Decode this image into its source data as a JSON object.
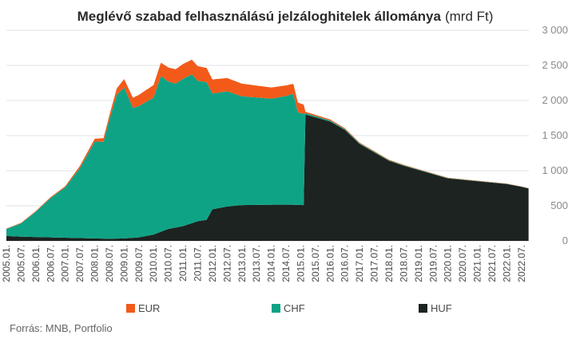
{
  "chart_data": {
    "type": "area",
    "stacked": true,
    "title_bold": "Meglévő szabad felhasználású jelzáloghitelek állománya",
    "title_unit": "(mrd Ft)",
    "source": "Forrás: MNB, Portfolio",
    "ylim": [
      0,
      3000
    ],
    "y_ticks": [
      0,
      500,
      1000,
      1500,
      2000,
      2500,
      3000
    ],
    "y_tick_labels": [
      "0",
      "500",
      "1 000",
      "1 500",
      "2 000",
      "2 500",
      "3 000"
    ],
    "x_tick_labels": [
      "2005.01.",
      "2005.07.",
      "2006.01.",
      "2006.07.",
      "2007.01.",
      "2007.07.",
      "2008.01.",
      "2008.07.",
      "2009.01.",
      "2009.07.",
      "2010.01.",
      "2010.07.",
      "2011.01.",
      "2011.07.",
      "2012.01.",
      "2012.07.",
      "2013.01.",
      "2013.07.",
      "2014.01.",
      "2014.07.",
      "2015.01.",
      "2015.07.",
      "2016.01.",
      "2016.07.",
      "2017.01.",
      "2017.07.",
      "2018.01.",
      "2018.07.",
      "2019.01.",
      "2019.07.",
      "2020.01.",
      "2020.07.",
      "2021.01.",
      "2021.07.",
      "2022.01.",
      "2022.07."
    ],
    "grid": true,
    "legend_position": "bottom",
    "series": [
      {
        "name": "HUF",
        "color": "#1c2320",
        "points": [
          [
            2005.0,
            70
          ],
          [
            2005.5,
            60
          ],
          [
            2006.0,
            55
          ],
          [
            2007.0,
            45
          ],
          [
            2008.0,
            35
          ],
          [
            2008.5,
            30
          ],
          [
            2009.0,
            35
          ],
          [
            2009.5,
            50
          ],
          [
            2010.0,
            90
          ],
          [
            2010.5,
            170
          ],
          [
            2011.0,
            210
          ],
          [
            2011.5,
            280
          ],
          [
            2011.8,
            300
          ],
          [
            2012.0,
            450
          ],
          [
            2012.5,
            490
          ],
          [
            2013.0,
            510
          ],
          [
            2014.0,
            515
          ],
          [
            2014.75,
            515
          ],
          [
            2015.1,
            510
          ],
          [
            2015.16,
            1800
          ],
          [
            2015.5,
            1760
          ],
          [
            2016.0,
            1700
          ],
          [
            2016.5,
            1580
          ],
          [
            2017.0,
            1380
          ],
          [
            2017.5,
            1260
          ],
          [
            2018.0,
            1140
          ],
          [
            2018.5,
            1070
          ],
          [
            2019.0,
            1010
          ],
          [
            2019.5,
            950
          ],
          [
            2020.0,
            890
          ],
          [
            2020.5,
            870
          ],
          [
            2021.0,
            850
          ],
          [
            2021.5,
            830
          ],
          [
            2022.0,
            810
          ],
          [
            2022.5,
            770
          ],
          [
            2022.75,
            745
          ]
        ]
      },
      {
        "name": "CHF",
        "color": "#0fa386",
        "points": [
          [
            2005.0,
            100
          ],
          [
            2005.5,
            190
          ],
          [
            2006.0,
            360
          ],
          [
            2006.5,
            560
          ],
          [
            2007.0,
            720
          ],
          [
            2007.5,
            1000
          ],
          [
            2008.0,
            1380
          ],
          [
            2008.3,
            1380
          ],
          [
            2008.5,
            1700
          ],
          [
            2008.75,
            2050
          ],
          [
            2009.0,
            2150
          ],
          [
            2009.3,
            1850
          ],
          [
            2009.5,
            1870
          ],
          [
            2010.0,
            1950
          ],
          [
            2010.25,
            2220
          ],
          [
            2010.5,
            2100
          ],
          [
            2010.75,
            2050
          ],
          [
            2011.0,
            2100
          ],
          [
            2011.3,
            2120
          ],
          [
            2011.5,
            2000
          ],
          [
            2011.8,
            1960
          ],
          [
            2012.0,
            1650
          ],
          [
            2012.5,
            1640
          ],
          [
            2013.0,
            1550
          ],
          [
            2013.5,
            1530
          ],
          [
            2014.0,
            1510
          ],
          [
            2014.5,
            1550
          ],
          [
            2014.75,
            1580
          ],
          [
            2014.9,
            1320
          ],
          [
            2015.1,
            1300
          ],
          [
            2015.16,
            20
          ],
          [
            2016.0,
            15
          ],
          [
            2017.0,
            10
          ],
          [
            2018.0,
            8
          ],
          [
            2019.0,
            6
          ],
          [
            2020.0,
            5
          ],
          [
            2021.0,
            4
          ],
          [
            2022.75,
            3
          ]
        ]
      },
      {
        "name": "EUR",
        "color": "#f35a1a",
        "points": [
          [
            2005.0,
            5
          ],
          [
            2006.0,
            10
          ],
          [
            2007.0,
            15
          ],
          [
            2007.5,
            30
          ],
          [
            2008.0,
            40
          ],
          [
            2008.5,
            60
          ],
          [
            2009.0,
            120
          ],
          [
            2009.5,
            160
          ],
          [
            2010.0,
            180
          ],
          [
            2010.5,
            200
          ],
          [
            2011.0,
            210
          ],
          [
            2011.5,
            210
          ],
          [
            2012.0,
            200
          ],
          [
            2012.5,
            190
          ],
          [
            2013.0,
            180
          ],
          [
            2013.5,
            170
          ],
          [
            2014.0,
            160
          ],
          [
            2014.5,
            150
          ],
          [
            2014.9,
            140
          ],
          [
            2015.1,
            130
          ],
          [
            2015.16,
            20
          ],
          [
            2016.0,
            15
          ],
          [
            2017.0,
            10
          ],
          [
            2018.0,
            8
          ],
          [
            2019.0,
            6
          ],
          [
            2020.0,
            5
          ],
          [
            2021.0,
            4
          ],
          [
            2022.75,
            3
          ]
        ]
      }
    ]
  }
}
